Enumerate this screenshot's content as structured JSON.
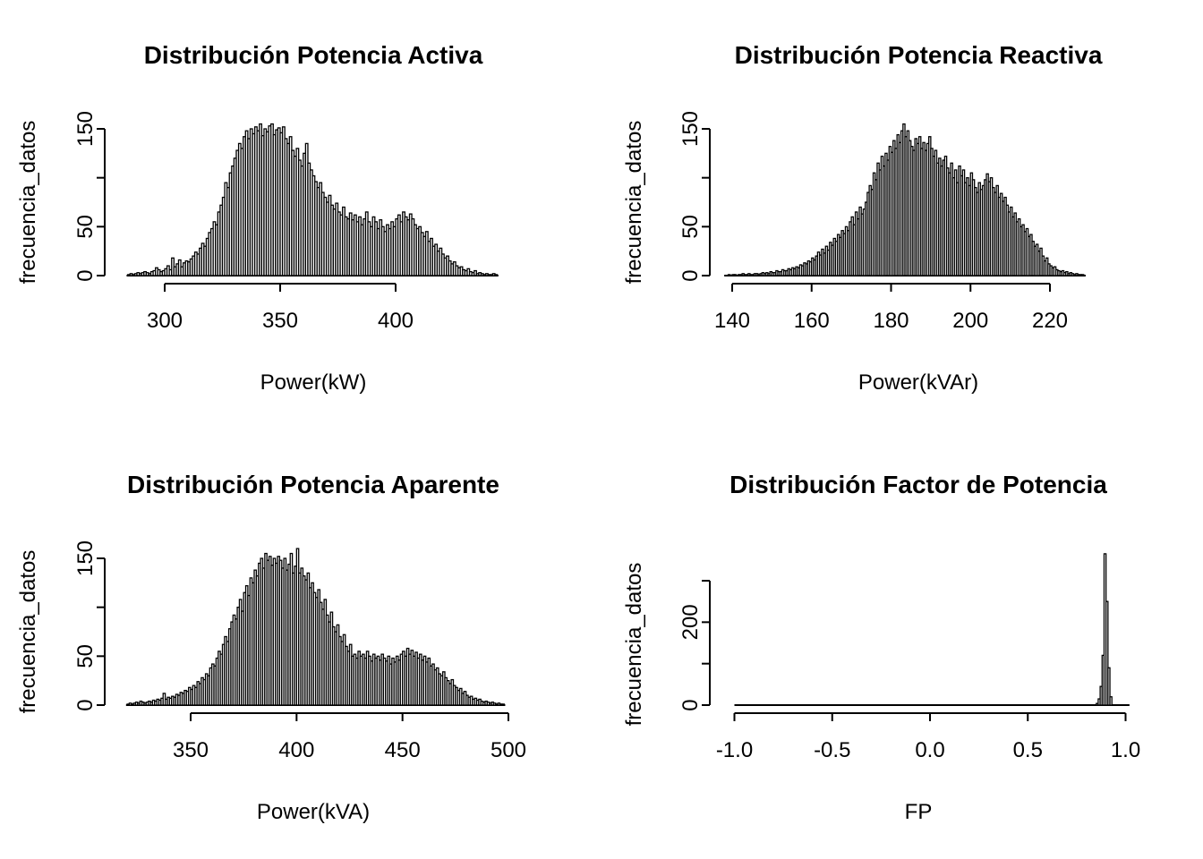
{
  "figure": {
    "background": "#ffffff",
    "colors": {
      "bar_fill": "#ffffff",
      "bar_stroke": "#000000",
      "axis": "#000000",
      "text": "#000000"
    }
  },
  "chart_data": [
    {
      "id": "potencia-activa",
      "type": "bar",
      "subtype": "histogram",
      "title": "Distribución Potencia Activa",
      "xlabel": "Power(kW)",
      "ylabel": "frecuencia_datos",
      "x_ticks": [
        300,
        350,
        400
      ],
      "x_tick_labels": [
        "300",
        "350",
        "400"
      ],
      "y_ticks": [
        0,
        50,
        100,
        150
      ],
      "y_tick_labels": [
        "0",
        "50",
        "",
        "150"
      ],
      "xlim": [
        283,
        445
      ],
      "ylim": [
        0,
        155
      ],
      "grid": false,
      "legend": null,
      "bins_start": 284,
      "bin_width": 1,
      "zero_extent": [
        283.5,
        444.5
      ],
      "counts": [
        1,
        2,
        1,
        2,
        3,
        2,
        3,
        4,
        3,
        2,
        4,
        5,
        8,
        6,
        4,
        5,
        7,
        10,
        6,
        18,
        9,
        12,
        16,
        9,
        13,
        15,
        14,
        17,
        20,
        24,
        22,
        28,
        33,
        30,
        38,
        44,
        48,
        55,
        52,
        65,
        72,
        80,
        95,
        90,
        105,
        112,
        120,
        128,
        135,
        130,
        142,
        148,
        140,
        150,
        145,
        152,
        148,
        155,
        143,
        150,
        147,
        153,
        155,
        144,
        149,
        151,
        146,
        152,
        140,
        135,
        142,
        128,
        122,
        130,
        118,
        112,
        125,
        135,
        115,
        108,
        102,
        96,
        90,
        95,
        85,
        80,
        75,
        82,
        72,
        68,
        74,
        65,
        62,
        70,
        60,
        58,
        64,
        57,
        62,
        55,
        60,
        52,
        58,
        65,
        55,
        50,
        60,
        55,
        48,
        57,
        50,
        45,
        52,
        48,
        55,
        50,
        58,
        62,
        55,
        65,
        60,
        57,
        63,
        58,
        52,
        48,
        50,
        44,
        40,
        45,
        35,
        38,
        30,
        32,
        25,
        28,
        22,
        18,
        20,
        15,
        12,
        14,
        10,
        8,
        9,
        6,
        5,
        7,
        4,
        3,
        5,
        2,
        3,
        2,
        1,
        2,
        1,
        1,
        2,
        1
      ]
    },
    {
      "id": "potencia-reactiva",
      "type": "bar",
      "subtype": "histogram",
      "title": "Distribución Potencia Reactiva",
      "xlabel": "Power(kVAr)",
      "ylabel": "frecuencia_datos",
      "x_ticks": [
        140,
        160,
        180,
        200,
        220
      ],
      "x_tick_labels": [
        "140",
        "160",
        "180",
        "200",
        "220"
      ],
      "y_ticks": [
        0,
        50,
        100,
        150
      ],
      "y_tick_labels": [
        "0",
        "50",
        "",
        "150"
      ],
      "xlim": [
        138,
        229
      ],
      "ylim": [
        0,
        155
      ],
      "grid": false,
      "legend": null,
      "bins_start": 138.5,
      "bin_width": 0.5,
      "zero_extent": [
        138,
        229
      ],
      "counts": [
        0,
        1,
        0,
        1,
        1,
        0,
        1,
        1,
        2,
        1,
        1,
        2,
        1,
        1,
        2,
        2,
        1,
        2,
        3,
        2,
        3,
        2,
        4,
        3,
        3,
        5,
        4,
        4,
        6,
        5,
        5,
        7,
        6,
        8,
        7,
        9,
        8,
        11,
        10,
        13,
        12,
        15,
        14,
        18,
        16,
        20,
        24,
        21,
        27,
        23,
        30,
        26,
        34,
        31,
        38,
        35,
        42,
        39,
        46,
        43,
        50,
        46,
        55,
        60,
        52,
        65,
        58,
        70,
        63,
        68,
        75,
        85,
        92,
        88,
        105,
        98,
        115,
        108,
        122,
        112,
        125,
        118,
        132,
        126,
        138,
        130,
        144,
        136,
        148,
        155,
        142,
        148,
        138,
        132,
        128,
        140,
        135,
        142,
        130,
        136,
        128,
        135,
        142,
        130,
        122,
        128,
        115,
        120,
        112,
        118,
        122,
        110,
        105,
        115,
        100,
        108,
        95,
        112,
        102,
        108,
        95,
        100,
        92,
        105,
        98,
        90,
        85,
        95,
        88,
        92,
        98,
        104,
        96,
        100,
        90,
        85,
        92,
        80,
        84,
        76,
        80,
        72,
        65,
        70,
        60,
        64,
        55,
        58,
        50,
        52,
        45,
        48,
        40,
        42,
        35,
        30,
        32,
        25,
        28,
        20,
        15,
        18,
        12,
        10,
        8,
        9,
        6,
        5,
        4,
        5,
        3,
        4,
        2,
        3,
        2,
        1,
        2,
        1,
        1,
        1
      ]
    },
    {
      "id": "potencia-aparente",
      "type": "bar",
      "subtype": "histogram",
      "title": "Distribución Potencia Aparente",
      "xlabel": "Power(kVA)",
      "ylabel": "frecuencia_datos",
      "x_ticks": [
        350,
        400,
        450,
        500
      ],
      "x_tick_labels": [
        "350",
        "400",
        "450",
        "500"
      ],
      "y_ticks": [
        0,
        50,
        100,
        150
      ],
      "y_tick_labels": [
        "0",
        "50",
        "",
        "150"
      ],
      "xlim": [
        319,
        499
      ],
      "ylim": [
        0,
        160
      ],
      "grid": false,
      "legend": null,
      "bins_start": 320,
      "bin_width": 1,
      "zero_extent": [
        319.5,
        498.5
      ],
      "counts": [
        1,
        2,
        1,
        2,
        3,
        2,
        4,
        3,
        2,
        3,
        4,
        3,
        5,
        4,
        6,
        5,
        7,
        12,
        6,
        8,
        7,
        9,
        8,
        11,
        10,
        13,
        12,
        15,
        14,
        18,
        16,
        20,
        18,
        24,
        22,
        28,
        26,
        32,
        30,
        38,
        42,
        40,
        48,
        55,
        52,
        62,
        70,
        65,
        78,
        85,
        92,
        88,
        100,
        108,
        96,
        115,
        122,
        112,
        130,
        125,
        138,
        132,
        145,
        150,
        140,
        155,
        148,
        152,
        143,
        150,
        145,
        152,
        148,
        140,
        150,
        138,
        144,
        155,
        135,
        142,
        160,
        135,
        140,
        132,
        128,
        135,
        120,
        125,
        115,
        110,
        118,
        105,
        98,
        108,
        92,
        85,
        95,
        80,
        75,
        82,
        70,
        65,
        72,
        60,
        55,
        62,
        50,
        52,
        48,
        55,
        50,
        52,
        48,
        55,
        50,
        45,
        52,
        48,
        50,
        46,
        52,
        48,
        45,
        50,
        42,
        48,
        44,
        50,
        46,
        52,
        55,
        50,
        58,
        52,
        56,
        50,
        54,
        48,
        52,
        46,
        50,
        44,
        48,
        40,
        42,
        36,
        38,
        32,
        30,
        34,
        28,
        25,
        22,
        26,
        20,
        18,
        15,
        17,
        12,
        14,
        10,
        8,
        9,
        6,
        7,
        5,
        6,
        4,
        3,
        4,
        3,
        2,
        3,
        2,
        1,
        2,
        1,
        1
      ]
    },
    {
      "id": "factor-de-potencia",
      "type": "bar",
      "subtype": "histogram",
      "title": "Distribución Factor de Potencia",
      "xlabel": "FP",
      "ylabel": "frecuencia_datos",
      "x_ticks": [
        -1.0,
        -0.5,
        0.0,
        0.5,
        1.0
      ],
      "x_tick_labels": [
        "-1.0",
        "-0.5",
        "0.0",
        "0.5",
        "1.0"
      ],
      "y_ticks": [
        0,
        100,
        200,
        300
      ],
      "y_tick_labels": [
        "0",
        "",
        "200",
        ""
      ],
      "xlim": [
        -1.0,
        1.02
      ],
      "ylim": [
        0,
        365
      ],
      "grid": false,
      "legend": null,
      "bins_start": 0.85,
      "bin_width": 0.01,
      "zero_extent": [
        -1.0,
        1.02
      ],
      "counts": [
        4,
        15,
        45,
        120,
        365,
        250,
        90,
        20
      ]
    }
  ]
}
